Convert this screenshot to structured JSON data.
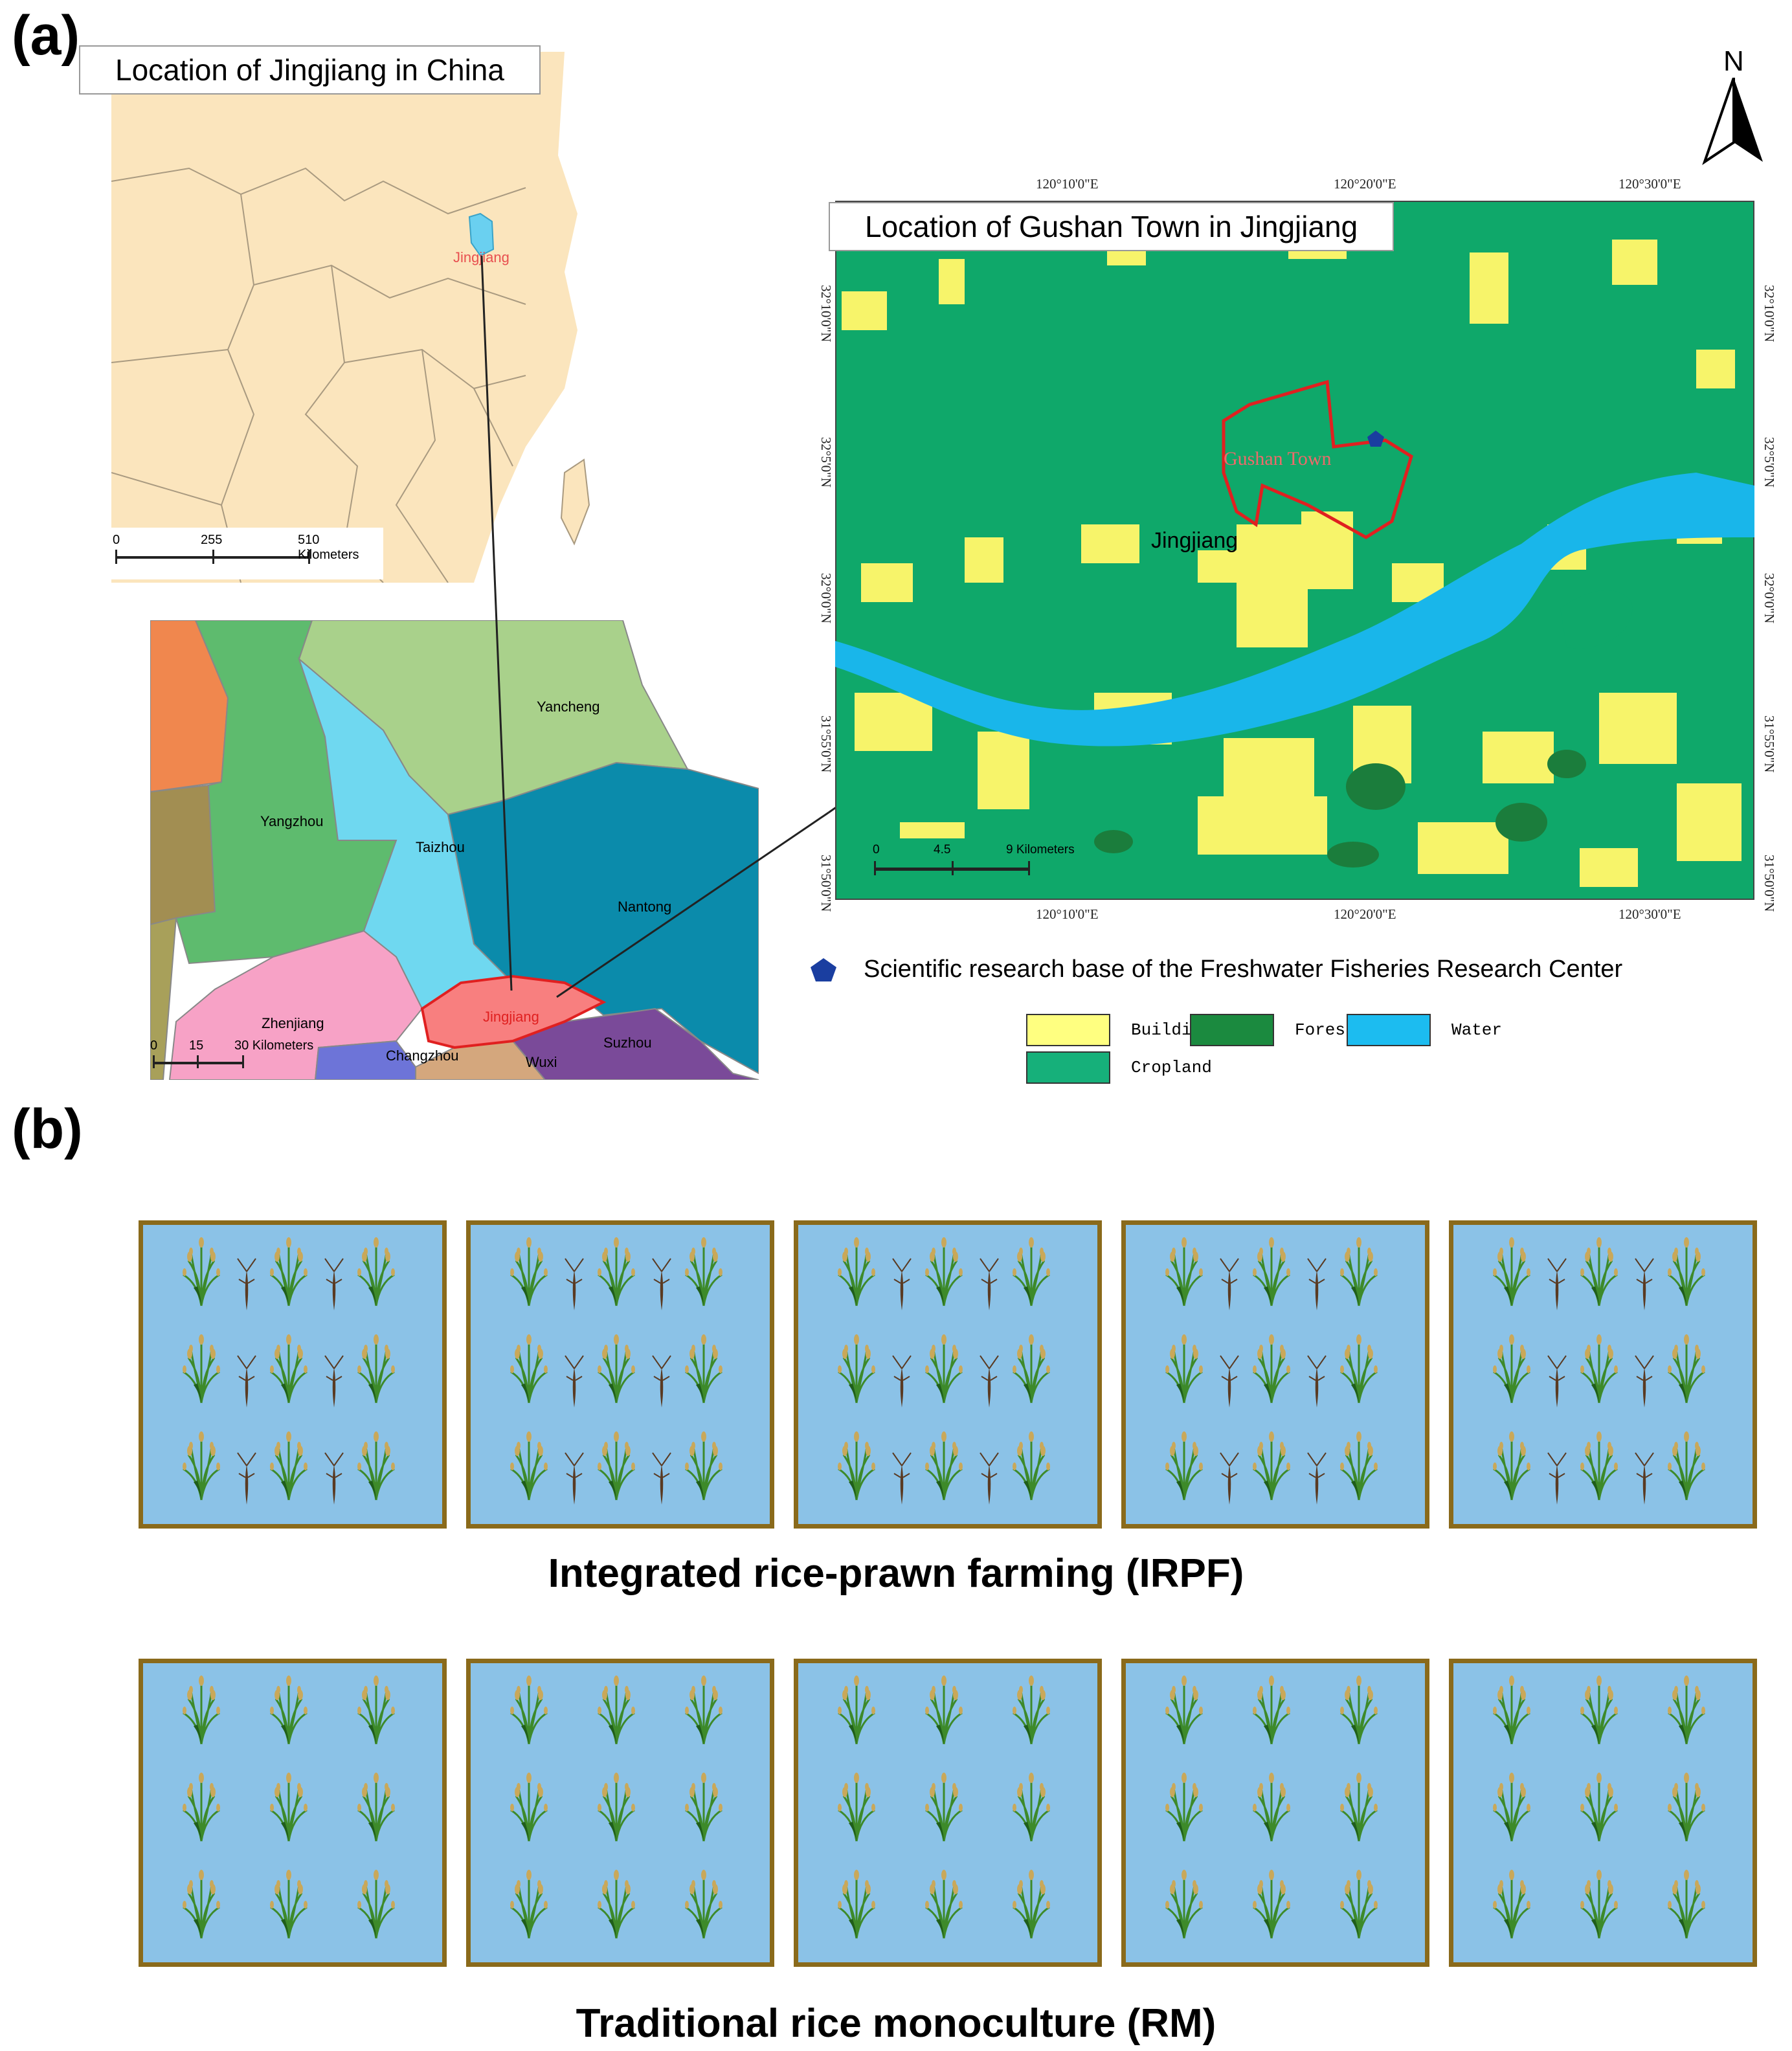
{
  "panels": {
    "a_label": "(a)",
    "b_label": "(b)"
  },
  "china_map": {
    "title": "Location of Jingjiang in China",
    "city_label": "Jingjiang",
    "scale": {
      "ticks": [
        "0",
        "255",
        "510 Kilometers"
      ]
    },
    "colors": {
      "land": "#fbe5bd",
      "water_marker": "#6ad0f0"
    }
  },
  "regional_map": {
    "regions": [
      {
        "name": "Yancheng",
        "color": "#a9d18b"
      },
      {
        "name": "Yangzhou",
        "color": "#5ebb6e"
      },
      {
        "name": "Taizhou",
        "color": "#6fd8f0"
      },
      {
        "name": "Nantong",
        "color": "#0b8bab"
      },
      {
        "name": "Zhenjiang",
        "color": "#f7a2c6"
      },
      {
        "name": "Changzhou",
        "color": "#6d74d8"
      },
      {
        "name": "Jingjiang",
        "color": "#f87f7f"
      },
      {
        "name": "Wuxi",
        "color": "#d4a77d"
      },
      {
        "name": "Suzhou",
        "color": "#7a4a99"
      }
    ],
    "extra_colors": [
      "#f0874e",
      "#a28e52",
      "#a8a05a"
    ],
    "scale": {
      "ticks": [
        "0",
        "15",
        "30 Kilometers"
      ]
    }
  },
  "landuse_map": {
    "title": "Location of Gushan Town in Jingjiang",
    "north_label": "N",
    "town_label": "Gushan Town",
    "city_label": "Jingjiang",
    "top_lon_labels": [
      "120°10'0\"E",
      "120°20'0\"E",
      "120°30'0\"E"
    ],
    "bottom_lon_labels": [
      "120°10'0\"E",
      "120°20'0\"E",
      "120°30'0\"E"
    ],
    "left_lat_labels": [
      "32°10'0\"N",
      "32°5'0\"N",
      "32°0'0\"N",
      "31°55'0\"N",
      "31°50'0\"N"
    ],
    "right_lat_labels": [
      "32°10'0\"N",
      "32°5'0\"N",
      "32°0'0\"N",
      "31°55'0\"N",
      "31°50'0\"N"
    ],
    "scale": {
      "ticks": [
        "0",
        "4.5",
        "9 Kilometers"
      ]
    },
    "colors": {
      "cropland": "#0fa86a",
      "building": "#f7f46a",
      "forest": "#1b7d3c",
      "water": "#19b6ea",
      "town_outline": "#e02020",
      "base_marker": "#1a3ea0"
    }
  },
  "legend": {
    "base_marker_label": "Scientific research base of the Freshwater Fisheries Research Center",
    "items": [
      {
        "label": "Building",
        "color": "#ffff80"
      },
      {
        "label": "Forest",
        "color": "#1b8a3f"
      },
      {
        "label": "Water",
        "color": "#1cbcf0"
      },
      {
        "label": "Cropland",
        "color": "#16b07a"
      }
    ]
  },
  "farming": {
    "irpf_caption": "Integrated rice-prawn farming (IRPF)",
    "rm_caption": "Traditional rice monoculture (RM)",
    "fields_per_row": 5,
    "colors": {
      "water": "#8bc2e7",
      "border": "#8a6a1b"
    }
  }
}
